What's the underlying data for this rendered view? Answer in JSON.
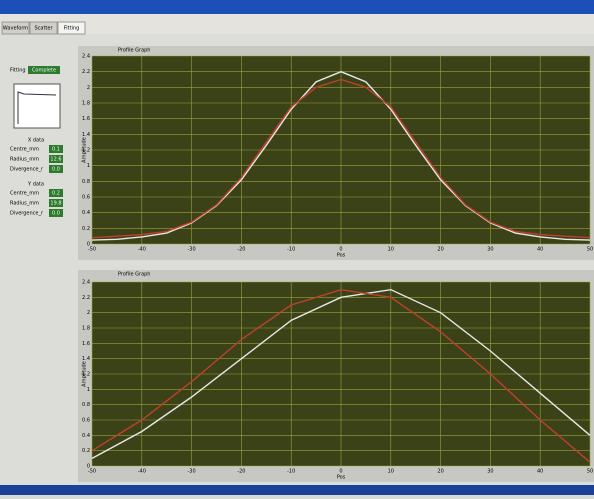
{
  "window": {
    "tabs": [
      "Waveform",
      "Scatter",
      "Fitting"
    ]
  },
  "panel": {
    "fit_label": "Fitting",
    "fit_status": "Complete",
    "groups": [
      {
        "title": "X data",
        "rows": [
          {
            "label": "Centre_mm",
            "value": "0.1"
          },
          {
            "label": "Radius_mm",
            "value": "12.6"
          },
          {
            "label": "Divergence_r",
            "value": "0.0"
          }
        ]
      },
      {
        "title": "Y data",
        "rows": [
          {
            "label": "Centre_mm",
            "value": "0.2"
          },
          {
            "label": "Radius_mm",
            "value": "19.8"
          },
          {
            "label": "Divergence_r",
            "value": "0.0"
          }
        ]
      }
    ]
  },
  "charts": [
    {
      "type": "line",
      "title": "Profile Graph",
      "x_label": "Pos",
      "y_label": "Amplitude",
      "x": [
        -50,
        -45,
        -40,
        -35,
        -30,
        -25,
        -20,
        -15,
        -10,
        -5,
        0,
        5,
        10,
        15,
        20,
        25,
        30,
        35,
        40,
        45,
        50
      ],
      "xlim": [
        -50,
        50
      ],
      "xticks": [
        -50,
        -40,
        -30,
        -20,
        -10,
        0,
        10,
        20,
        30,
        40,
        50
      ],
      "ylim": [
        0,
        2.4
      ],
      "yticks": [
        0,
        0.2,
        0.4,
        0.6,
        0.8,
        1,
        1.2,
        1.4,
        1.6,
        1.8,
        2,
        2.2,
        2.4
      ],
      "grid": true,
      "series": [
        {
          "color": "#e8e8e8",
          "values": [
            0.05,
            0.06,
            0.09,
            0.14,
            0.27,
            0.49,
            0.82,
            1.26,
            1.72,
            2.07,
            2.2,
            2.07,
            1.72,
            1.26,
            0.82,
            0.49,
            0.27,
            0.14,
            0.09,
            0.06,
            0.05
          ]
        },
        {
          "color": "#c0402c",
          "values": [
            0.08,
            0.1,
            0.12,
            0.16,
            0.28,
            0.5,
            0.85,
            1.3,
            1.75,
            2.0,
            2.1,
            2.0,
            1.75,
            1.3,
            0.85,
            0.5,
            0.28,
            0.16,
            0.12,
            0.1,
            0.08
          ]
        }
      ]
    },
    {
      "type": "line",
      "title": "Profile Graph",
      "x_label": "Pos",
      "y_label": "Amplitude",
      "x": [
        -50,
        -40,
        -30,
        -20,
        -10,
        0,
        10,
        20,
        30,
        40,
        50
      ],
      "xlim": [
        -50,
        50
      ],
      "xticks": [
        -50,
        -40,
        -30,
        -20,
        -10,
        0,
        10,
        20,
        30,
        40,
        50
      ],
      "ylim": [
        0,
        2.4
      ],
      "yticks": [
        0,
        0.2,
        0.4,
        0.6,
        0.8,
        1,
        1.2,
        1.4,
        1.6,
        1.8,
        2,
        2.2,
        2.4
      ],
      "grid": true,
      "series": [
        {
          "color": "#e8e8e8",
          "values": [
            0.1,
            0.45,
            0.9,
            1.4,
            1.9,
            2.2,
            2.3,
            2.0,
            1.5,
            0.95,
            0.4
          ]
        },
        {
          "color": "#c0402c",
          "values": [
            0.2,
            0.6,
            1.1,
            1.65,
            2.1,
            2.3,
            2.2,
            1.75,
            1.2,
            0.6,
            0.05
          ]
        }
      ]
    }
  ]
}
